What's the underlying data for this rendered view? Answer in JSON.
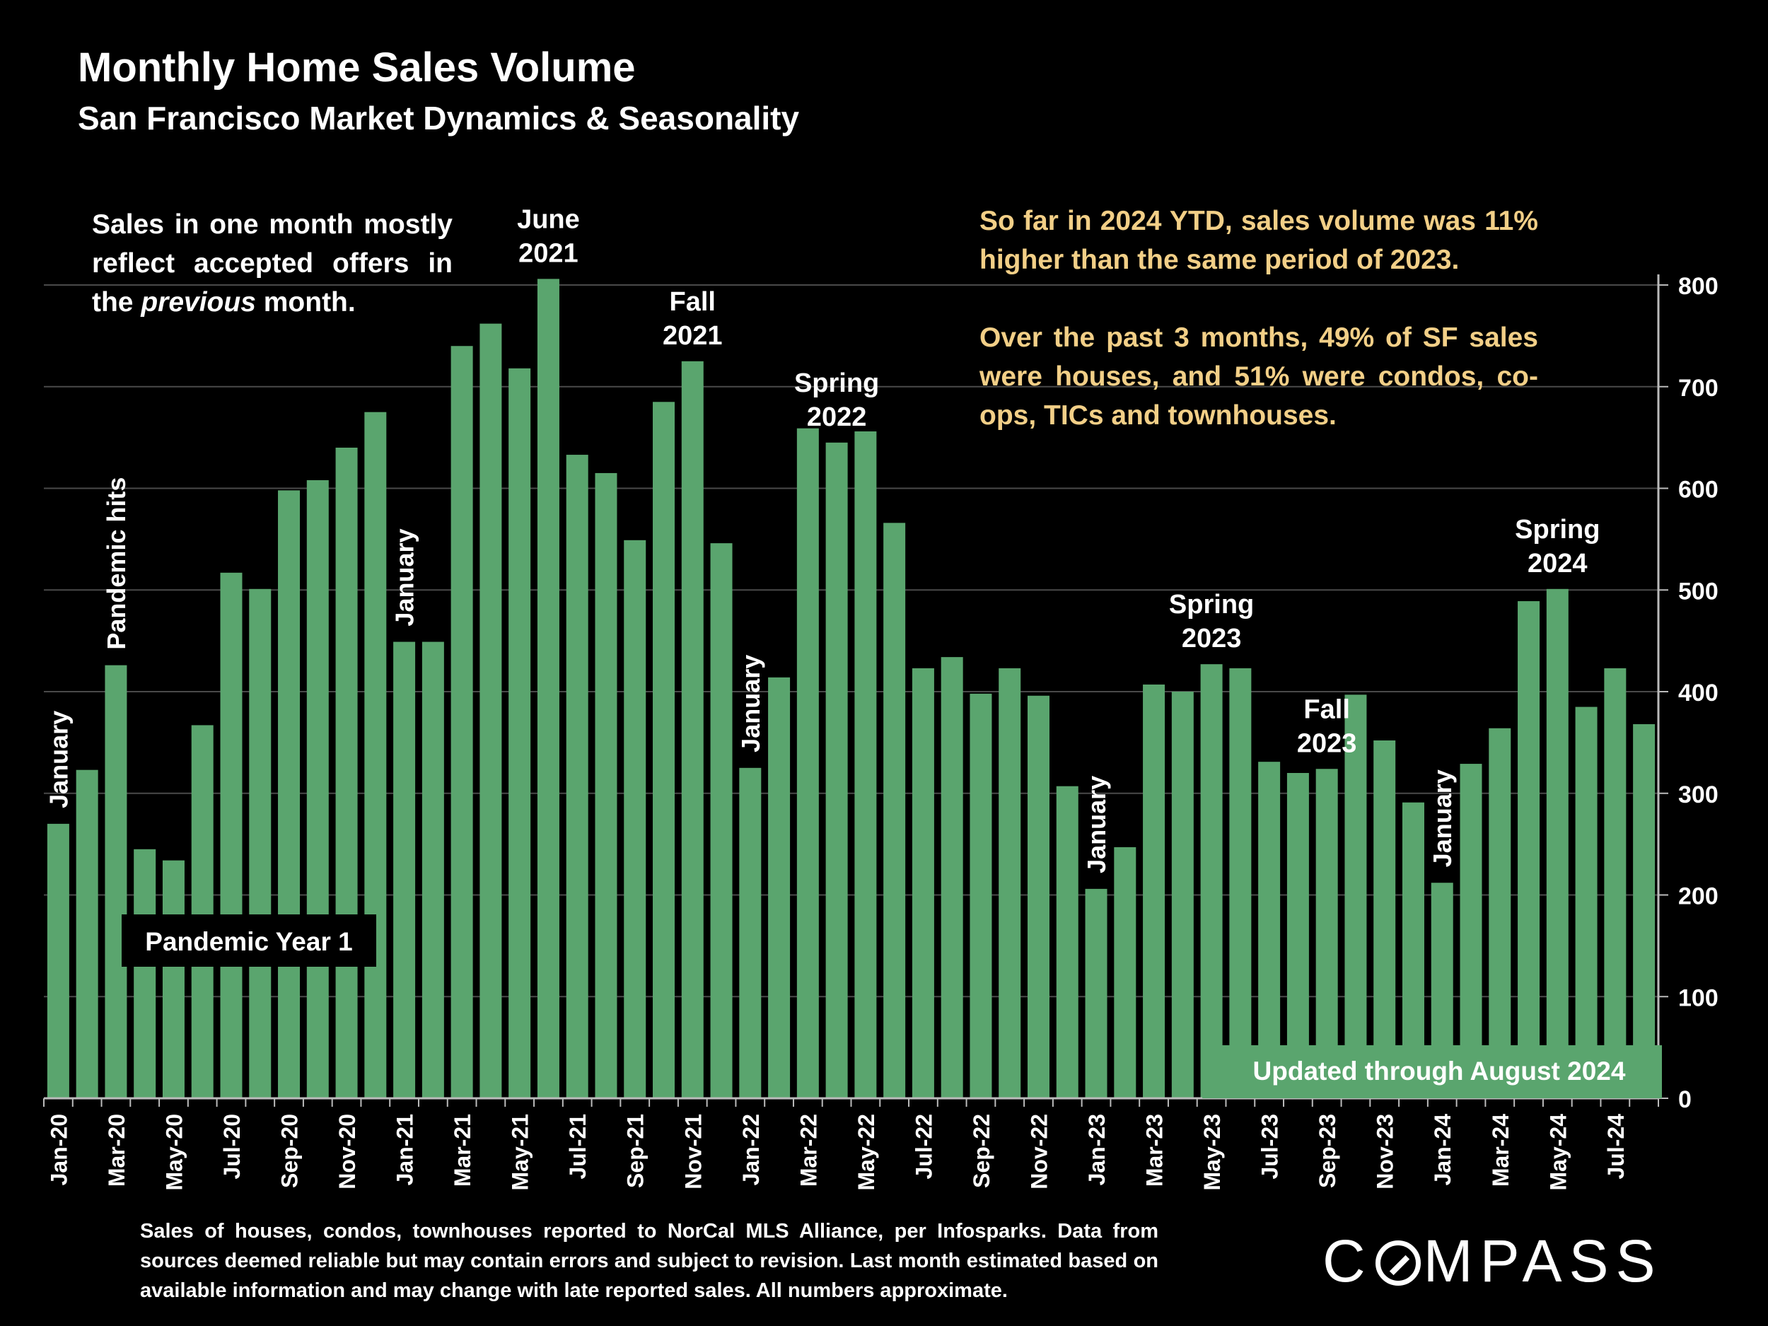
{
  "title": "Monthly Home Sales Volume",
  "subtitle": "San Francisco Market Dynamics & Seasonality",
  "note_left_parts": [
    "Sales in one month mostly reflect accepted offers in the ",
    "previous",
    " month."
  ],
  "note_right": [
    "So far in 2024 YTD, sales volume was 11% higher than the same period of 2023.",
    "Over the past 3 months, 49% of SF sales were houses, and 51% were condos, co-ops, TICs and townhouses."
  ],
  "footnote": "Sales of houses, condos, townhouses reported to NorCal MLS Alliance, per Infosparks. Data from sources deemed reliable but may contain errors and subject to revision. Last month estimated based on available information and may change with late reported sales. All numbers approximate.",
  "logo_text": [
    "C",
    "MPASS"
  ],
  "colors": {
    "bar": "#5aa56e",
    "background": "#000000",
    "highlight_text": "#f2cf87",
    "label_box": "#000000",
    "updated_box": "#5aa56e"
  },
  "chart_data": {
    "type": "bar",
    "title": "Monthly Home Sales Volume",
    "subtitle": "San Francisco Market Dynamics & Seasonality",
    "categories": [
      "Jan-20",
      "Feb-20",
      "Mar-20",
      "Apr-20",
      "May-20",
      "Jun-20",
      "Jul-20",
      "Aug-20",
      "Sep-20",
      "Oct-20",
      "Nov-20",
      "Dec-20",
      "Jan-21",
      "Feb-21",
      "Mar-21",
      "Apr-21",
      "May-21",
      "Jun-21",
      "Jul-21",
      "Aug-21",
      "Sep-21",
      "Oct-21",
      "Nov-21",
      "Dec-21",
      "Jan-22",
      "Feb-22",
      "Mar-22",
      "Apr-22",
      "May-22",
      "Jun-22",
      "Jul-22",
      "Aug-22",
      "Sep-22",
      "Oct-22",
      "Nov-22",
      "Dec-22",
      "Jan-23",
      "Feb-23",
      "Mar-23",
      "Apr-23",
      "May-23",
      "Jun-23",
      "Jul-23",
      "Aug-23",
      "Sep-23",
      "Oct-23",
      "Nov-23",
      "Dec-23",
      "Jan-24",
      "Feb-24",
      "Mar-24",
      "Apr-24",
      "May-24",
      "Jun-24",
      "Jul-24",
      "Aug-24"
    ],
    "values": [
      270,
      323,
      426,
      245,
      234,
      367,
      517,
      501,
      598,
      608,
      640,
      675,
      449,
      449,
      740,
      762,
      718,
      806,
      633,
      615,
      549,
      685,
      725,
      546,
      325,
      414,
      659,
      645,
      656,
      566,
      423,
      434,
      398,
      423,
      396,
      307,
      206,
      247,
      407,
      400,
      427,
      423,
      331,
      320,
      324,
      397,
      352,
      291,
      212,
      329,
      364,
      489,
      501,
      385,
      423,
      368
    ],
    "x_tick_labels": [
      "Jan-20",
      "Mar-20",
      "May-20",
      "Jul-20",
      "Sep-20",
      "Nov-20",
      "Jan-21",
      "Mar-21",
      "May-21",
      "Jul-21",
      "Sep-21",
      "Nov-21",
      "Jan-22",
      "Mar-22",
      "May-22",
      "Jul-22",
      "Sep-22",
      "Nov-22",
      "Jan-23",
      "Mar-23",
      "May-23",
      "Jul-23",
      "Sep-23",
      "Nov-23",
      "Jan-24",
      "Mar-24",
      "May-24",
      "Jul-24"
    ],
    "y_ticks": [
      0,
      100,
      200,
      300,
      400,
      500,
      600,
      700,
      800
    ],
    "ylim": [
      0,
      800
    ],
    "y_axis_side": "right",
    "grid": true,
    "annotations": [
      {
        "text": "January",
        "at": "Jan-20",
        "rotated": true
      },
      {
        "text": "Pandemic hits",
        "at": "Mar-20",
        "rotated": true
      },
      {
        "text": "January",
        "at": "Jan-21",
        "rotated": true
      },
      {
        "text": "June 2021",
        "lines": [
          "June",
          "2021"
        ],
        "at": "Jun-21"
      },
      {
        "text": "Fall 2021",
        "lines": [
          "Fall",
          "2021"
        ],
        "at": "Nov-21"
      },
      {
        "text": "January",
        "at": "Jan-22",
        "rotated": true
      },
      {
        "text": "Spring 2022",
        "lines": [
          "Spring",
          "2022"
        ],
        "at": "Apr-22"
      },
      {
        "text": "January",
        "at": "Jan-23",
        "rotated": true
      },
      {
        "text": "Spring 2023",
        "lines": [
          "Spring",
          "2023"
        ],
        "at": "May-23"
      },
      {
        "text": "Fall 2023",
        "lines": [
          "Fall",
          "2023"
        ],
        "at": "Sep-23"
      },
      {
        "text": "January",
        "at": "Jan-24",
        "rotated": true
      },
      {
        "text": "Spring 2024",
        "lines": [
          "Spring",
          "2024"
        ],
        "at": "May-24"
      }
    ],
    "boxed_labels": [
      {
        "text": "Pandemic Year 1",
        "style": "dark"
      },
      {
        "text": "Updated through August 2024",
        "style": "green"
      }
    ]
  }
}
